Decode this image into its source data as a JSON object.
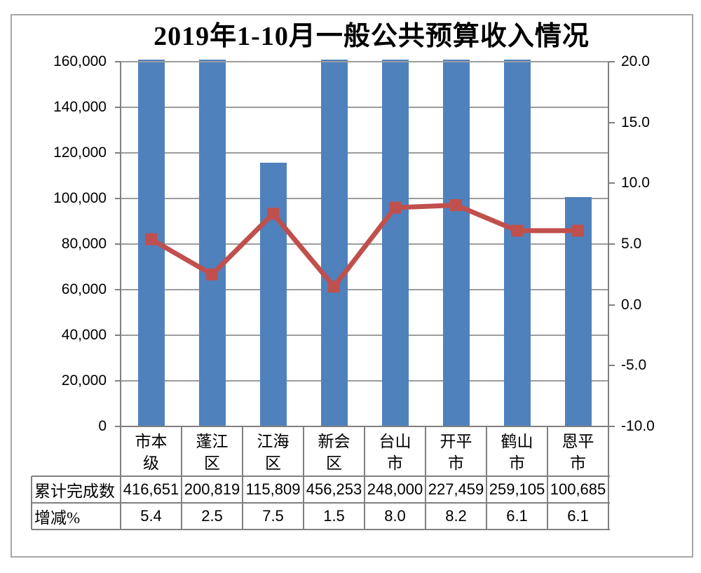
{
  "title": "2019年1-10月一般公共预算收入情况",
  "chart_data": {
    "type": "combo",
    "subtype": [
      "bar",
      "line"
    ],
    "categories": [
      "市本级",
      "蓬江区",
      "江海区",
      "新会区",
      "台山市",
      "开平市",
      "鹤山市",
      "恩平市"
    ],
    "category_labels_wrapped": [
      "市本\n级",
      "蓬江\n区",
      "江海\n区",
      "新会\n区",
      "台山\n市",
      "开平\n市",
      "鹤山\n市",
      "恩平\n市"
    ],
    "series": [
      {
        "name": "累计完成数",
        "type": "bar",
        "axis": "left",
        "color": "#4F81BD",
        "values": [
          416651,
          200819,
          115809,
          456253,
          248000,
          227459,
          259105,
          100685
        ]
      },
      {
        "name": "增减%",
        "type": "line",
        "axis": "right",
        "color": "#C0504D",
        "marker": "square",
        "values": [
          5.4,
          2.5,
          7.5,
          1.5,
          8.0,
          8.2,
          6.1,
          6.1
        ]
      }
    ],
    "left_axis": {
      "min": 0,
      "max": 160000,
      "step": 20000,
      "tick_labels": [
        "160,000",
        "140,000",
        "120,000",
        "100,000",
        "80,000",
        "60,000",
        "40,000",
        "20,000",
        "0"
      ]
    },
    "right_axis": {
      "min": -10,
      "max": 20,
      "step": 5,
      "tick_labels": [
        "20.0",
        "15.0",
        "10.0",
        "5.0",
        "0.0",
        "-5.0",
        "-10.0"
      ]
    },
    "grid": true,
    "legend": "none",
    "note": "bars exceeding left-axis max 160,000 are clipped at plot top"
  },
  "table": {
    "rows": [
      {
        "label": "累计完成数",
        "values": [
          "416,651",
          "200,819",
          "115,809",
          "456,253",
          "248,000",
          "227,459",
          "259,105",
          "100,685"
        ]
      },
      {
        "label": "增减%",
        "values": [
          "5.4",
          "2.5",
          "7.5",
          "1.5",
          "8.0",
          "8.2",
          "6.1",
          "6.1"
        ]
      }
    ]
  },
  "colors": {
    "bar": "#4F81BD",
    "line": "#C0504D",
    "gridline": "#9C9C9C",
    "axis": "#808080",
    "frame_border": "#A6A6A6",
    "text": "#000000",
    "background": "#FFFFFF"
  }
}
